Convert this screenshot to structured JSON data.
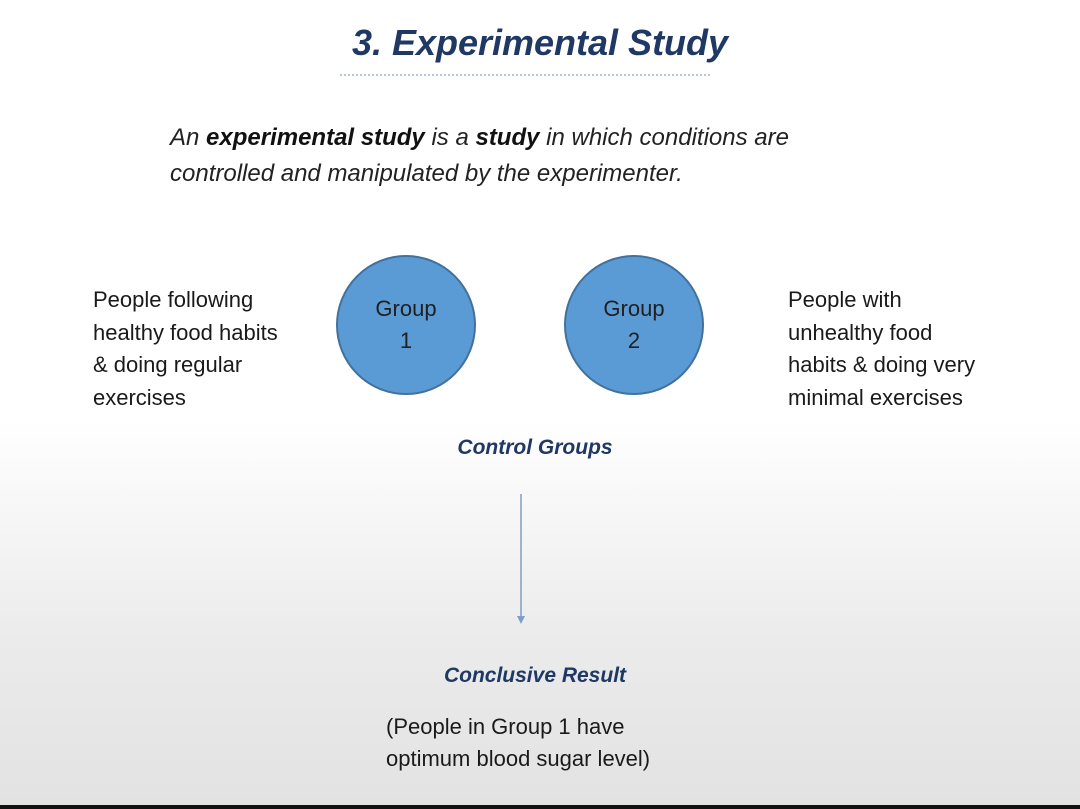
{
  "slide": {
    "title": "3. Experimental Study",
    "definition": {
      "part1": "An ",
      "bold1": "experimental study",
      "part2": " is a ",
      "bold2": "study",
      "part3": " in which conditions are",
      "line2": "controlled and manipulated by the experimenter."
    },
    "left_text": {
      "lines": [
        "People following",
        "healthy food habits",
        "& doing regular",
        "exercises"
      ]
    },
    "right_text": {
      "lines": [
        "People with",
        "unhealthy food",
        "habits & doing very",
        "minimal exercises"
      ]
    },
    "group1": {
      "label": "Group",
      "number": "1"
    },
    "group2": {
      "label": "Group",
      "number": "2"
    },
    "control_label": "Control Groups",
    "result_label": "Conclusive Result",
    "result_text": {
      "lines": [
        "(People in Group 1 have",
        "optimum blood sugar level)"
      ]
    },
    "colors": {
      "title": "#1f3864",
      "circle_fill": "#5b9bd5",
      "circle_border": "#41719c",
      "arrow": "#7f9fc6"
    }
  }
}
